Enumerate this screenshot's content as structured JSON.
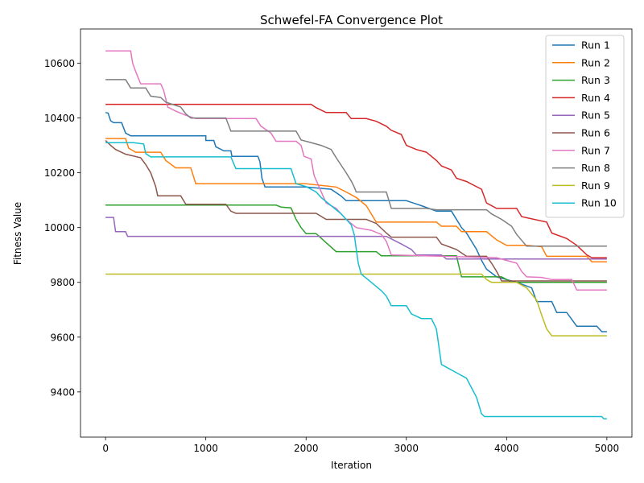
{
  "chart_data": {
    "type": "line",
    "title": "Schwefel-FA Convergence Plot",
    "xlabel": "Iteration",
    "ylabel": "Fitness Value",
    "xlim": [
      -250,
      5250
    ],
    "ylim": [
      9235,
      10725
    ],
    "xticks": [
      0,
      1000,
      2000,
      3000,
      4000,
      5000
    ],
    "yticks": [
      9400,
      9600,
      9800,
      10000,
      10200,
      10400,
      10600
    ],
    "legend_position": "top-right",
    "grid": false,
    "series": [
      {
        "name": "Run 1",
        "color": "#1f77b4",
        "points": [
          [
            0,
            10420
          ],
          [
            25,
            10418
          ],
          [
            50,
            10390
          ],
          [
            80,
            10383
          ],
          [
            160,
            10383
          ],
          [
            200,
            10345
          ],
          [
            250,
            10335
          ],
          [
            1000,
            10335
          ],
          [
            1000,
            10318
          ],
          [
            1080,
            10318
          ],
          [
            1100,
            10295
          ],
          [
            1180,
            10280
          ],
          [
            1250,
            10280
          ],
          [
            1260,
            10260
          ],
          [
            1520,
            10260
          ],
          [
            1540,
            10240
          ],
          [
            1560,
            10180
          ],
          [
            1590,
            10148
          ],
          [
            1900,
            10148
          ],
          [
            2000,
            10148
          ],
          [
            2250,
            10140
          ],
          [
            2350,
            10115
          ],
          [
            2400,
            10098
          ],
          [
            3000,
            10098
          ],
          [
            3150,
            10080
          ],
          [
            3300,
            10060
          ],
          [
            3450,
            10060
          ],
          [
            3550,
            10000
          ],
          [
            3600,
            9980
          ],
          [
            3700,
            9920
          ],
          [
            3750,
            9880
          ],
          [
            3800,
            9848
          ],
          [
            3900,
            9820
          ],
          [
            4000,
            9810
          ],
          [
            4100,
            9800
          ],
          [
            4250,
            9780
          ],
          [
            4300,
            9730
          ],
          [
            4450,
            9730
          ],
          [
            4500,
            9690
          ],
          [
            4600,
            9690
          ],
          [
            4700,
            9640
          ],
          [
            4900,
            9640
          ],
          [
            4950,
            9620
          ],
          [
            5000,
            9620
          ]
        ]
      },
      {
        "name": "Run 2",
        "color": "#ff7f0e",
        "points": [
          [
            0,
            10325
          ],
          [
            200,
            10325
          ],
          [
            230,
            10290
          ],
          [
            300,
            10275
          ],
          [
            550,
            10275
          ],
          [
            600,
            10245
          ],
          [
            700,
            10218
          ],
          [
            850,
            10218
          ],
          [
            900,
            10160
          ],
          [
            2000,
            10160
          ],
          [
            2300,
            10148
          ],
          [
            2400,
            10130
          ],
          [
            2500,
            10110
          ],
          [
            2600,
            10080
          ],
          [
            2700,
            10020
          ],
          [
            3300,
            10020
          ],
          [
            3350,
            10005
          ],
          [
            3500,
            10005
          ],
          [
            3550,
            9985
          ],
          [
            3800,
            9985
          ],
          [
            3900,
            9955
          ],
          [
            4000,
            9935
          ],
          [
            4200,
            9935
          ],
          [
            4350,
            9930
          ],
          [
            4400,
            9895
          ],
          [
            4800,
            9895
          ],
          [
            4850,
            9875
          ],
          [
            5000,
            9875
          ]
        ]
      },
      {
        "name": "Run 3",
        "color": "#2ca02c",
        "points": [
          [
            0,
            10082
          ],
          [
            1700,
            10082
          ],
          [
            1750,
            10075
          ],
          [
            1850,
            10072
          ],
          [
            1900,
            10030
          ],
          [
            1950,
            10000
          ],
          [
            2000,
            9978
          ],
          [
            2100,
            9978
          ],
          [
            2200,
            9945
          ],
          [
            2300,
            9912
          ],
          [
            2700,
            9912
          ],
          [
            2750,
            9897
          ],
          [
            3500,
            9897
          ],
          [
            3550,
            9820
          ],
          [
            3950,
            9820
          ],
          [
            4050,
            9800
          ],
          [
            5000,
            9800
          ]
        ]
      },
      {
        "name": "Run 4",
        "color": "#d62728",
        "points": [
          [
            0,
            10450
          ],
          [
            2050,
            10450
          ],
          [
            2100,
            10438
          ],
          [
            2200,
            10420
          ],
          [
            2400,
            10420
          ],
          [
            2450,
            10398
          ],
          [
            2600,
            10398
          ],
          [
            2700,
            10388
          ],
          [
            2800,
            10370
          ],
          [
            2850,
            10355
          ],
          [
            2950,
            10340
          ],
          [
            3000,
            10300
          ],
          [
            3100,
            10285
          ],
          [
            3200,
            10275
          ],
          [
            3300,
            10245
          ],
          [
            3350,
            10225
          ],
          [
            3450,
            10210
          ],
          [
            3500,
            10180
          ],
          [
            3600,
            10168
          ],
          [
            3750,
            10140
          ],
          [
            3800,
            10090
          ],
          [
            3900,
            10070
          ],
          [
            4100,
            10070
          ],
          [
            4150,
            10040
          ],
          [
            4400,
            10020
          ],
          [
            4450,
            9980
          ],
          [
            4600,
            9960
          ],
          [
            4700,
            9935
          ],
          [
            4800,
            9900
          ],
          [
            4850,
            9890
          ],
          [
            5000,
            9890
          ]
        ]
      },
      {
        "name": "Run 5",
        "color": "#9467bd",
        "points": [
          [
            0,
            10037
          ],
          [
            80,
            10037
          ],
          [
            100,
            9985
          ],
          [
            200,
            9985
          ],
          [
            220,
            9968
          ],
          [
            2800,
            9968
          ],
          [
            2950,
            9940
          ],
          [
            3050,
            9920
          ],
          [
            3100,
            9900
          ],
          [
            3350,
            9900
          ],
          [
            3400,
            9885
          ],
          [
            5000,
            9885
          ]
        ]
      },
      {
        "name": "Run 6",
        "color": "#8c564b",
        "points": [
          [
            0,
            10318
          ],
          [
            50,
            10300
          ],
          [
            100,
            10285
          ],
          [
            200,
            10268
          ],
          [
            350,
            10255
          ],
          [
            400,
            10230
          ],
          [
            450,
            10200
          ],
          [
            500,
            10150
          ],
          [
            520,
            10116
          ],
          [
            750,
            10116
          ],
          [
            800,
            10085
          ],
          [
            1200,
            10085
          ],
          [
            1250,
            10060
          ],
          [
            1300,
            10052
          ],
          [
            2100,
            10052
          ],
          [
            2200,
            10030
          ],
          [
            2600,
            10030
          ],
          [
            2700,
            10015
          ],
          [
            2800,
            9980
          ],
          [
            2850,
            9965
          ],
          [
            3300,
            9965
          ],
          [
            3350,
            9940
          ],
          [
            3500,
            9920
          ],
          [
            3600,
            9895
          ],
          [
            3800,
            9895
          ],
          [
            3850,
            9870
          ],
          [
            3900,
            9840
          ],
          [
            3950,
            9805
          ],
          [
            5000,
            9805
          ]
        ]
      },
      {
        "name": "Run 7",
        "color": "#e377c2",
        "points": [
          [
            0,
            10645
          ],
          [
            250,
            10645
          ],
          [
            270,
            10600
          ],
          [
            300,
            10570
          ],
          [
            350,
            10525
          ],
          [
            550,
            10525
          ],
          [
            580,
            10500
          ],
          [
            620,
            10440
          ],
          [
            700,
            10425
          ],
          [
            800,
            10410
          ],
          [
            900,
            10398
          ],
          [
            1000,
            10398
          ],
          [
            1500,
            10398
          ],
          [
            1550,
            10370
          ],
          [
            1650,
            10345
          ],
          [
            1700,
            10315
          ],
          [
            1900,
            10315
          ],
          [
            1950,
            10300
          ],
          [
            1980,
            10260
          ],
          [
            2050,
            10250
          ],
          [
            2080,
            10190
          ],
          [
            2200,
            10090
          ],
          [
            2300,
            10070
          ],
          [
            2400,
            10030
          ],
          [
            2500,
            10000
          ],
          [
            2650,
            9990
          ],
          [
            2750,
            9975
          ],
          [
            2800,
            9950
          ],
          [
            2850,
            9900
          ],
          [
            3900,
            9890
          ],
          [
            4000,
            9880
          ],
          [
            4100,
            9870
          ],
          [
            4150,
            9840
          ],
          [
            4200,
            9820
          ],
          [
            4350,
            9818
          ],
          [
            4450,
            9810
          ],
          [
            4650,
            9810
          ],
          [
            4700,
            9772
          ],
          [
            5000,
            9772
          ]
        ]
      },
      {
        "name": "Run 8",
        "color": "#7f7f7f",
        "points": [
          [
            0,
            10540
          ],
          [
            200,
            10540
          ],
          [
            250,
            10510
          ],
          [
            400,
            10510
          ],
          [
            450,
            10480
          ],
          [
            550,
            10475
          ],
          [
            600,
            10458
          ],
          [
            750,
            10440
          ],
          [
            800,
            10415
          ],
          [
            850,
            10400
          ],
          [
            900,
            10400
          ],
          [
            1200,
            10400
          ],
          [
            1250,
            10352
          ],
          [
            1900,
            10352
          ],
          [
            1950,
            10320
          ],
          [
            2150,
            10300
          ],
          [
            2250,
            10285
          ],
          [
            2300,
            10255
          ],
          [
            2400,
            10200
          ],
          [
            2450,
            10170
          ],
          [
            2480,
            10148
          ],
          [
            2500,
            10130
          ],
          [
            2800,
            10130
          ],
          [
            2850,
            10070
          ],
          [
            3200,
            10070
          ],
          [
            3300,
            10065
          ],
          [
            3800,
            10065
          ],
          [
            3850,
            10050
          ],
          [
            3950,
            10030
          ],
          [
            4050,
            10005
          ],
          [
            4100,
            9975
          ],
          [
            4200,
            9932
          ],
          [
            5000,
            9932
          ]
        ]
      },
      {
        "name": "Run 9",
        "color": "#bcbd22",
        "points": [
          [
            0,
            9830
          ],
          [
            3750,
            9830
          ],
          [
            3800,
            9810
          ],
          [
            3850,
            9800
          ],
          [
            4100,
            9800
          ],
          [
            4200,
            9780
          ],
          [
            4300,
            9735
          ],
          [
            4350,
            9680
          ],
          [
            4400,
            9630
          ],
          [
            4450,
            9605
          ],
          [
            5000,
            9605
          ]
        ]
      },
      {
        "name": "Run 10",
        "color": "#17becf",
        "points": [
          [
            0,
            10310
          ],
          [
            280,
            10310
          ],
          [
            380,
            10305
          ],
          [
            400,
            10270
          ],
          [
            450,
            10258
          ],
          [
            1250,
            10258
          ],
          [
            1300,
            10215
          ],
          [
            1850,
            10215
          ],
          [
            1900,
            10160
          ],
          [
            2000,
            10150
          ],
          [
            2100,
            10130
          ],
          [
            2150,
            10110
          ],
          [
            2250,
            10080
          ],
          [
            2350,
            10050
          ],
          [
            2450,
            10010
          ],
          [
            2480,
            9975
          ],
          [
            2520,
            9870
          ],
          [
            2550,
            9830
          ],
          [
            2650,
            9800
          ],
          [
            2750,
            9770
          ],
          [
            2800,
            9750
          ],
          [
            2850,
            9715
          ],
          [
            3000,
            9715
          ],
          [
            3050,
            9685
          ],
          [
            3150,
            9668
          ],
          [
            3250,
            9668
          ],
          [
            3300,
            9630
          ],
          [
            3350,
            9500
          ],
          [
            3400,
            9490
          ],
          [
            3500,
            9470
          ],
          [
            3600,
            9450
          ],
          [
            3700,
            9380
          ],
          [
            3750,
            9320
          ],
          [
            3780,
            9310
          ],
          [
            4950,
            9310
          ],
          [
            4970,
            9302
          ],
          [
            5000,
            9302
          ]
        ]
      }
    ]
  }
}
